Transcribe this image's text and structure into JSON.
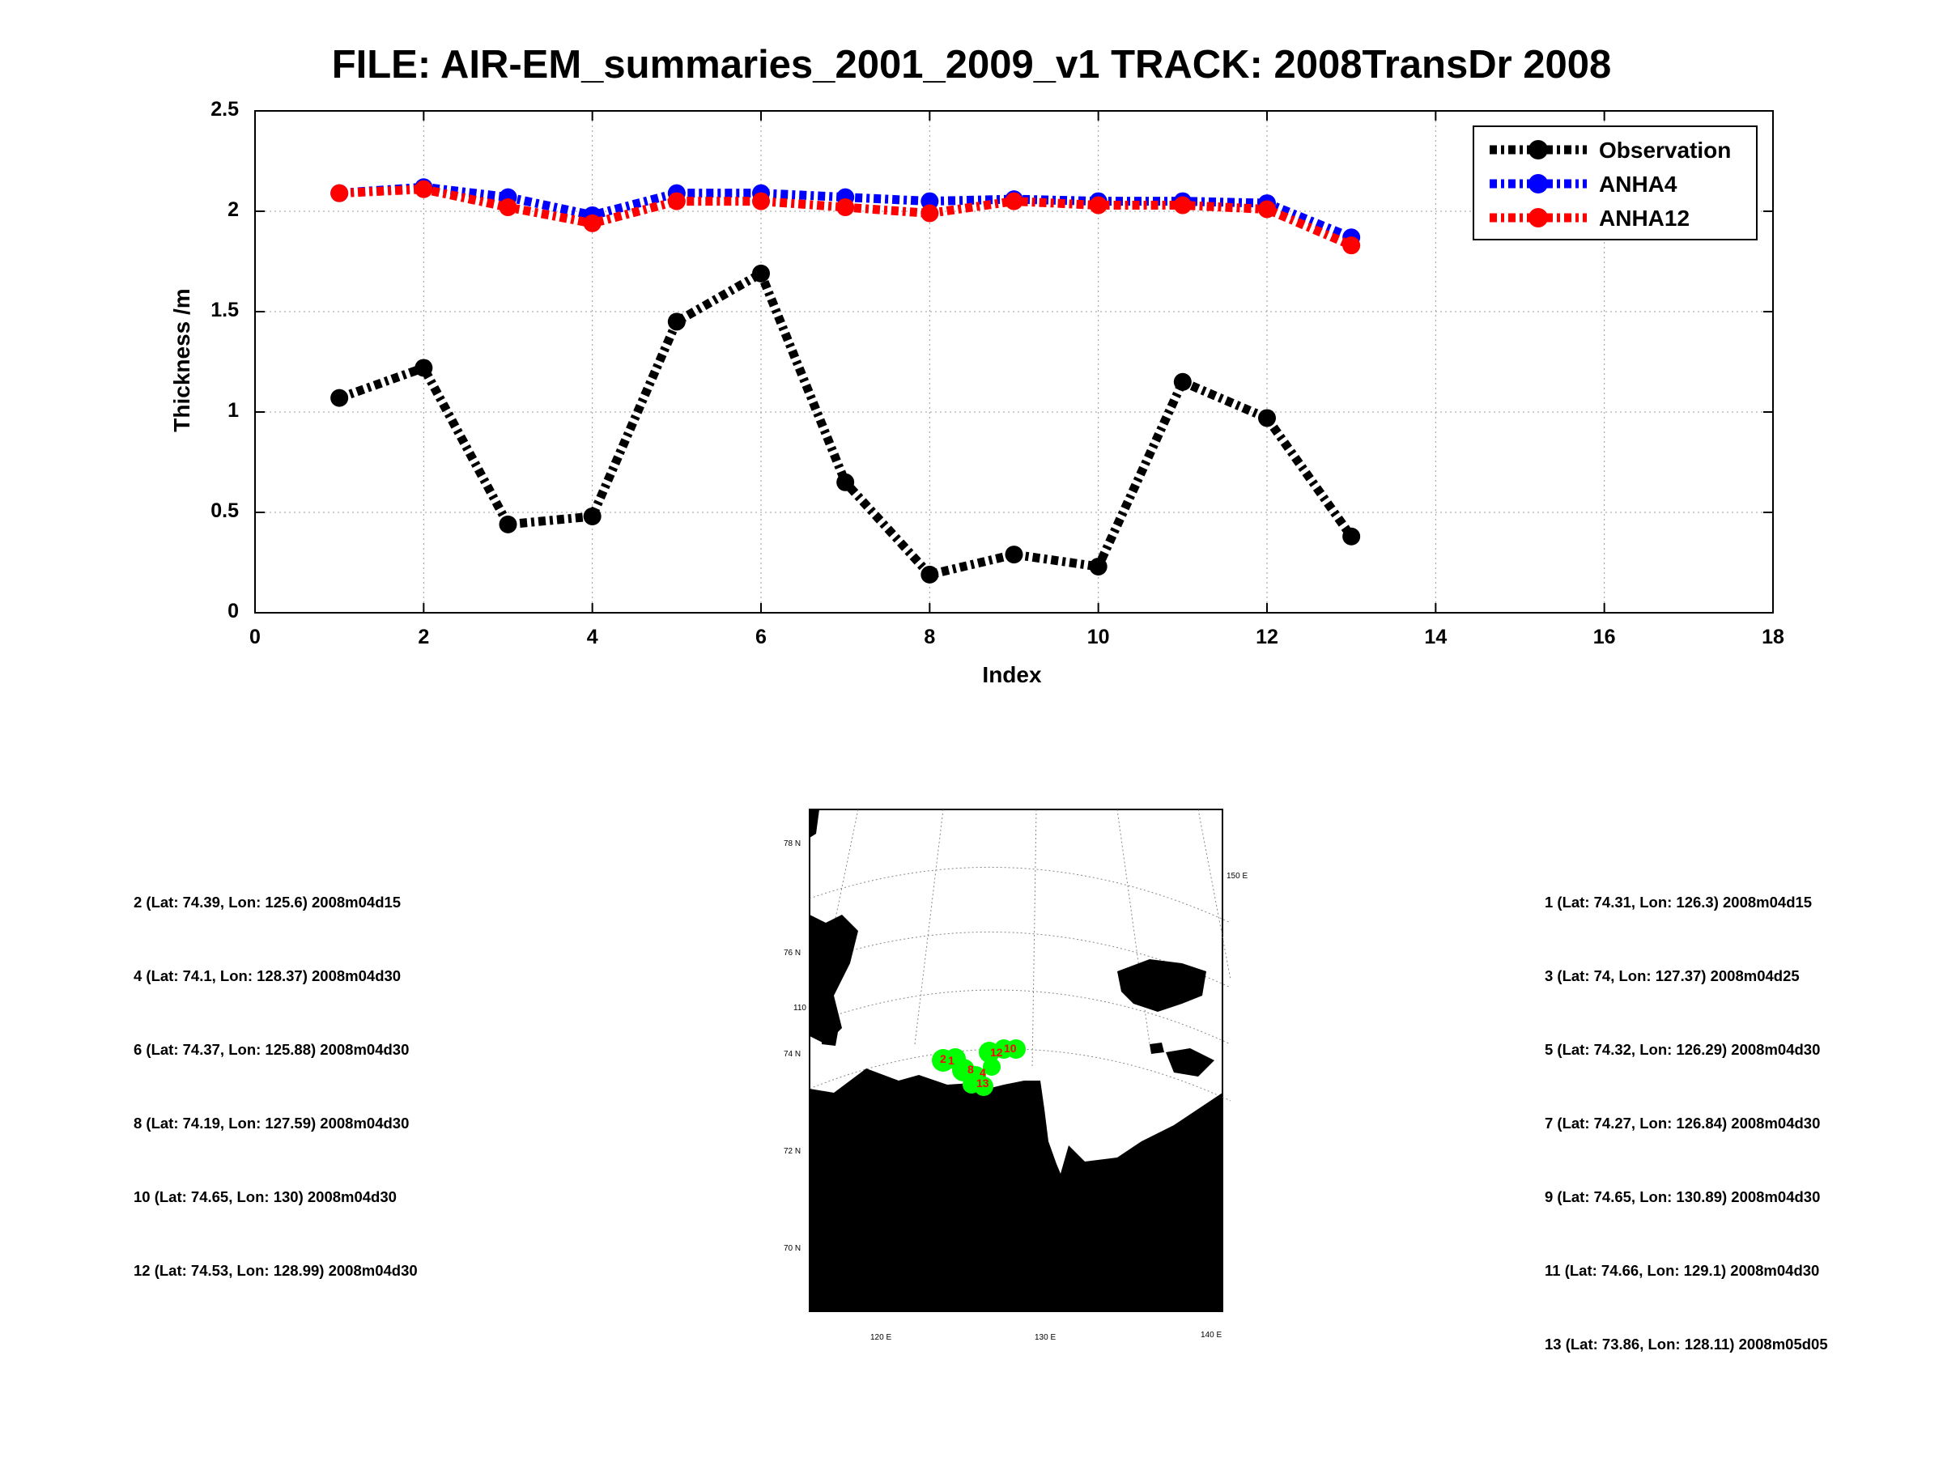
{
  "chart_data": {
    "type": "line",
    "title": "FILE: AIR-EM_summaries_2001_2009_v1 TRACK: 2008TransDr 2008",
    "xlabel": "Index",
    "ylabel": "Thickness /m",
    "xlim": [
      0,
      18
    ],
    "ylim": [
      0,
      2.5
    ],
    "xticks": [
      "0",
      "2",
      "4",
      "6",
      "8",
      "10",
      "12",
      "14",
      "16",
      "18"
    ],
    "yticks": [
      "0",
      "0.5",
      "1",
      "1.5",
      "2",
      "2.5"
    ],
    "grid": true,
    "legend": "top-right",
    "x": [
      1,
      2,
      3,
      4,
      5,
      6,
      7,
      8,
      9,
      10,
      11,
      12,
      13
    ],
    "series": [
      {
        "name": "Observation",
        "color": "#000000",
        "values": [
          1.07,
          1.22,
          0.44,
          0.48,
          1.45,
          1.69,
          0.65,
          0.19,
          0.29,
          0.23,
          1.15,
          0.97,
          0.38
        ]
      },
      {
        "name": "ANHA4",
        "color": "#0000ff",
        "values": [
          2.09,
          2.12,
          2.07,
          1.98,
          2.09,
          2.09,
          2.07,
          2.05,
          2.06,
          2.05,
          2.05,
          2.04,
          1.87
        ]
      },
      {
        "name": "ANHA12",
        "color": "#ff0000",
        "values": [
          2.09,
          2.11,
          2.02,
          1.94,
          2.05,
          2.05,
          2.02,
          1.99,
          2.05,
          2.03,
          2.03,
          2.01,
          1.83
        ]
      }
    ]
  },
  "map": {
    "track_color": "#00ff00",
    "label_color": "#ff0000",
    "land_color": "#000000",
    "lat_labels": [
      "78 N",
      "76 N",
      "74 N",
      "72 N",
      "70 N"
    ],
    "lon_labels_bottom": [
      "120 E",
      "130 E",
      "140 E"
    ],
    "lon_label_side": "150 E",
    "lon_label_partial": "110",
    "track_labels": [
      "2",
      "1",
      "8",
      "4",
      "13",
      "12",
      "10"
    ]
  },
  "points_left": [
    "2 (Lat: 74.39, Lon: 125.6) 2008m04d15",
    "4 (Lat: 74.1, Lon: 128.37) 2008m04d30",
    "6 (Lat: 74.37, Lon: 125.88) 2008m04d30",
    "8 (Lat: 74.19, Lon: 127.59) 2008m04d30",
    "10 (Lat: 74.65, Lon: 130) 2008m04d30",
    "12 (Lat: 74.53, Lon: 128.99) 2008m04d30"
  ],
  "points_right": [
    "1 (Lat: 74.31, Lon: 126.3) 2008m04d15",
    "3 (Lat: 74, Lon: 127.37) 2008m04d25",
    "5 (Lat: 74.32, Lon: 126.29) 2008m04d30",
    "7 (Lat: 74.27, Lon: 126.84) 2008m04d30",
    "9 (Lat: 74.65, Lon: 130.89) 2008m04d30",
    "11 (Lat: 74.66, Lon: 129.1) 2008m04d30",
    "13 (Lat: 73.86, Lon: 128.11) 2008m05d05"
  ]
}
